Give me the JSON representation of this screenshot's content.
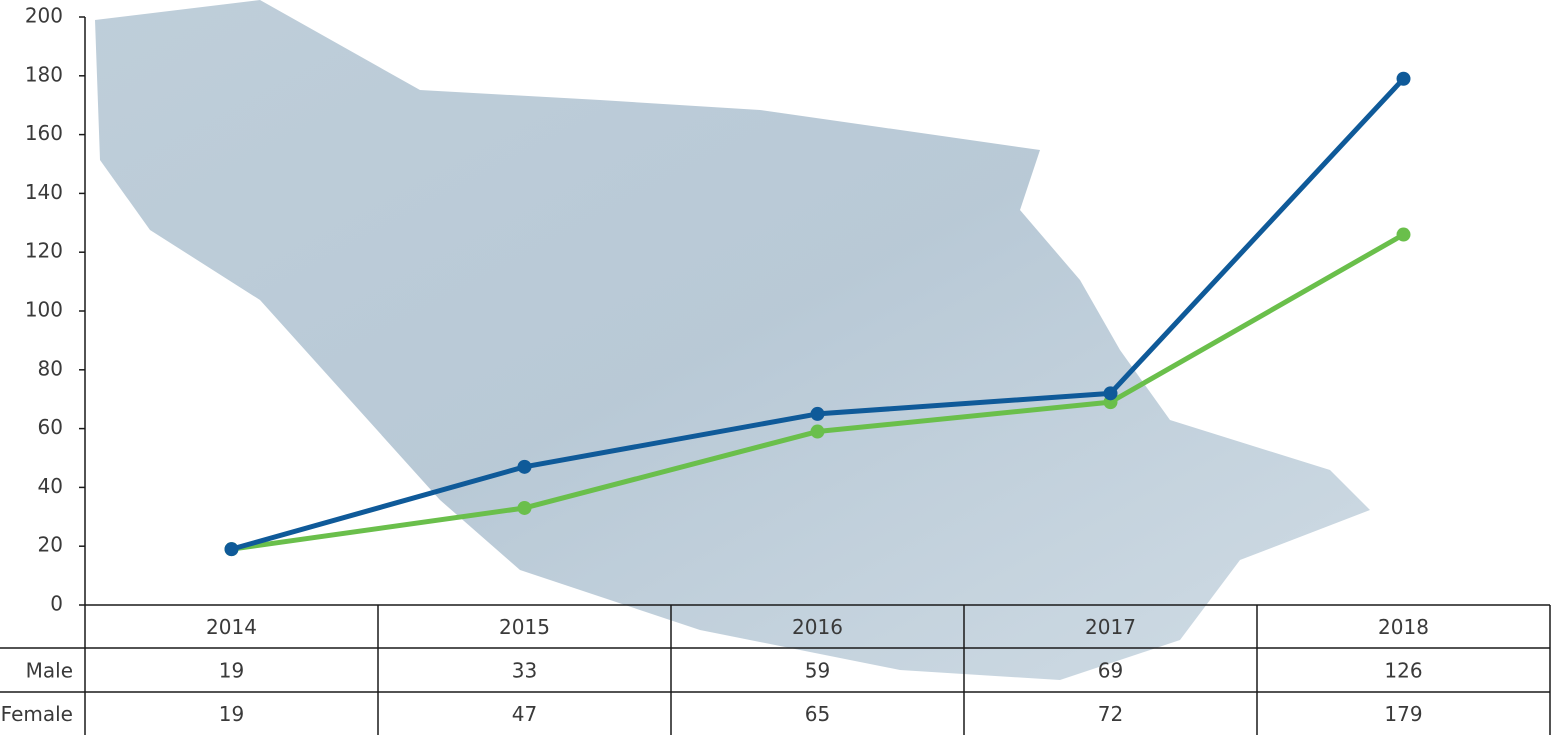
{
  "chart_data": {
    "type": "line",
    "categories": [
      "2014",
      "2015",
      "2016",
      "2017",
      "2018"
    ],
    "series": [
      {
        "name": "Male",
        "color": "#6abf4b",
        "values": [
          19,
          33,
          59,
          69,
          126
        ]
      },
      {
        "name": "Female",
        "color": "#0f5a99",
        "values": [
          19,
          47,
          65,
          72,
          179
        ]
      }
    ],
    "ylim": [
      0,
      200
    ],
    "yticks": [
      0,
      20,
      40,
      60,
      80,
      100,
      120,
      140,
      160,
      180,
      200
    ],
    "grid": false
  }
}
